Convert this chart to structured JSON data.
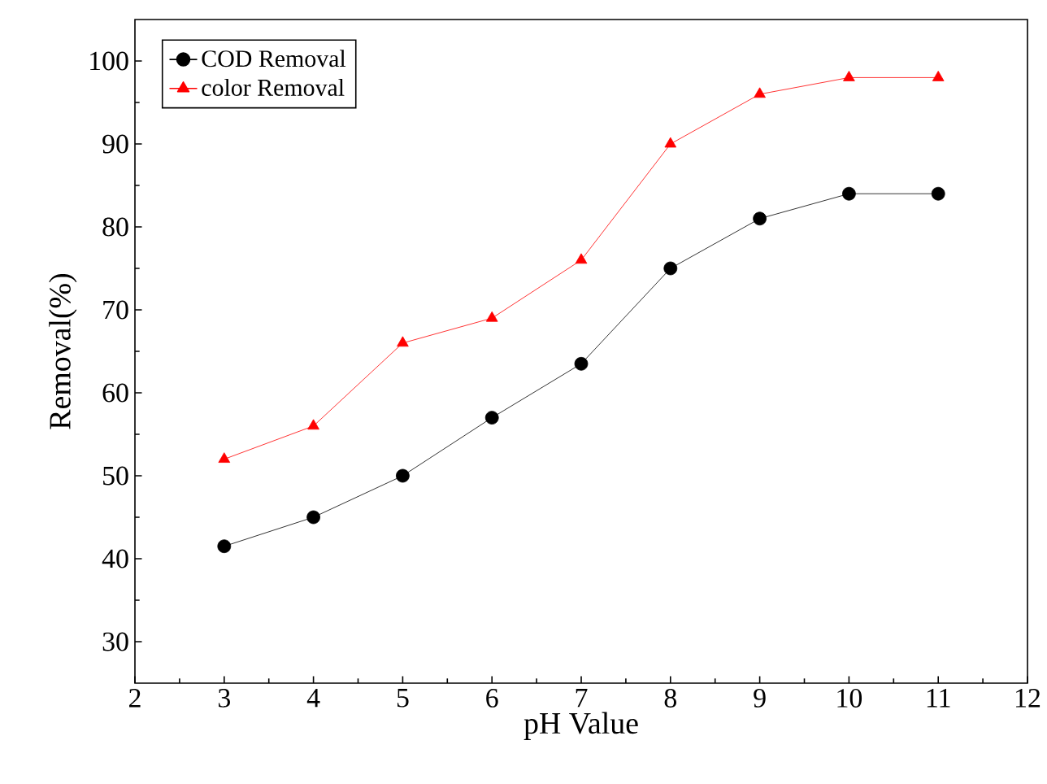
{
  "chart_data": {
    "type": "line",
    "xlabel": "pH Value",
    "ylabel": "Removal(%)",
    "x": [
      3,
      4,
      5,
      6,
      7,
      8,
      9,
      10,
      11
    ],
    "series": [
      {
        "name": "COD Removal",
        "color": "#000000",
        "marker": "circle",
        "values": [
          41.5,
          45,
          50,
          57,
          63.5,
          75,
          81,
          84,
          84
        ]
      },
      {
        "name": "color Removal",
        "color": "#ff0000",
        "marker": "triangle",
        "values": [
          52,
          56,
          66,
          69,
          76,
          90,
          96,
          98,
          98
        ]
      }
    ],
    "xlim": [
      2,
      12
    ],
    "ylim": [
      25,
      105
    ],
    "xticks": [
      2,
      3,
      4,
      5,
      6,
      7,
      8,
      9,
      10,
      11,
      12
    ],
    "yticks": [
      30,
      40,
      50,
      60,
      70,
      80,
      90,
      100
    ],
    "grid": false,
    "legend": "top left",
    "line_style": "solid"
  }
}
